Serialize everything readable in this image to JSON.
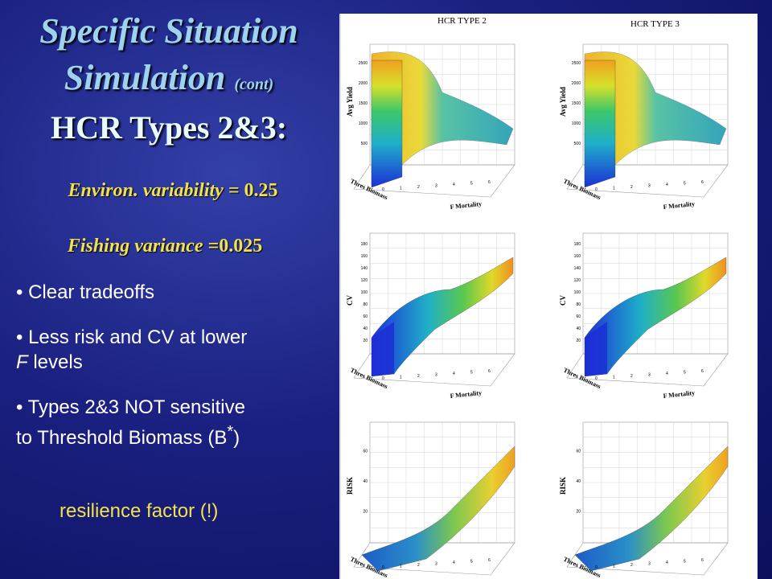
{
  "title": {
    "line1": "Specific Situation",
    "line2": "Simulation",
    "cont": "(cont)"
  },
  "subtitle": "HCR Types 2&3:",
  "params": {
    "environ_label": "Environ. variability = ",
    "environ_value": "0.25",
    "fishing_label": "Fishing variance =",
    "fishing_value": "0.025"
  },
  "bullets": [
    "• Clear tradeoffs",
    "• Less risk and CV at lower",
    "F",
    " levels",
    "• Types 2&3 NOT sensitive",
    "to Threshold Biomass (B",
    "*",
    ")"
  ],
  "resilience_note": "resilience factor (!)",
  "figure": {
    "col_titles": [
      "HCR TYPE 2",
      "HCR TYPE 3"
    ],
    "row_ylabels": [
      "Avg Yield",
      "CV",
      "RISK"
    ],
    "xlabel": "F Mortality",
    "blabel": "Thres Biomass",
    "fticks": [
      "0",
      "1",
      "2",
      "3",
      "4",
      "5",
      "6"
    ],
    "yticks_yield": [
      "500",
      "1000",
      "1500",
      "2000",
      "2500"
    ],
    "yticks_cv": [
      "20",
      "40",
      "60",
      "80",
      "100",
      "120",
      "140",
      "160",
      "180"
    ],
    "yticks_risk": [
      "20",
      "40",
      "60"
    ]
  },
  "colors": {
    "title": "#9ed3f0",
    "accent": "#f2e24b",
    "bg": "#1a2080"
  }
}
